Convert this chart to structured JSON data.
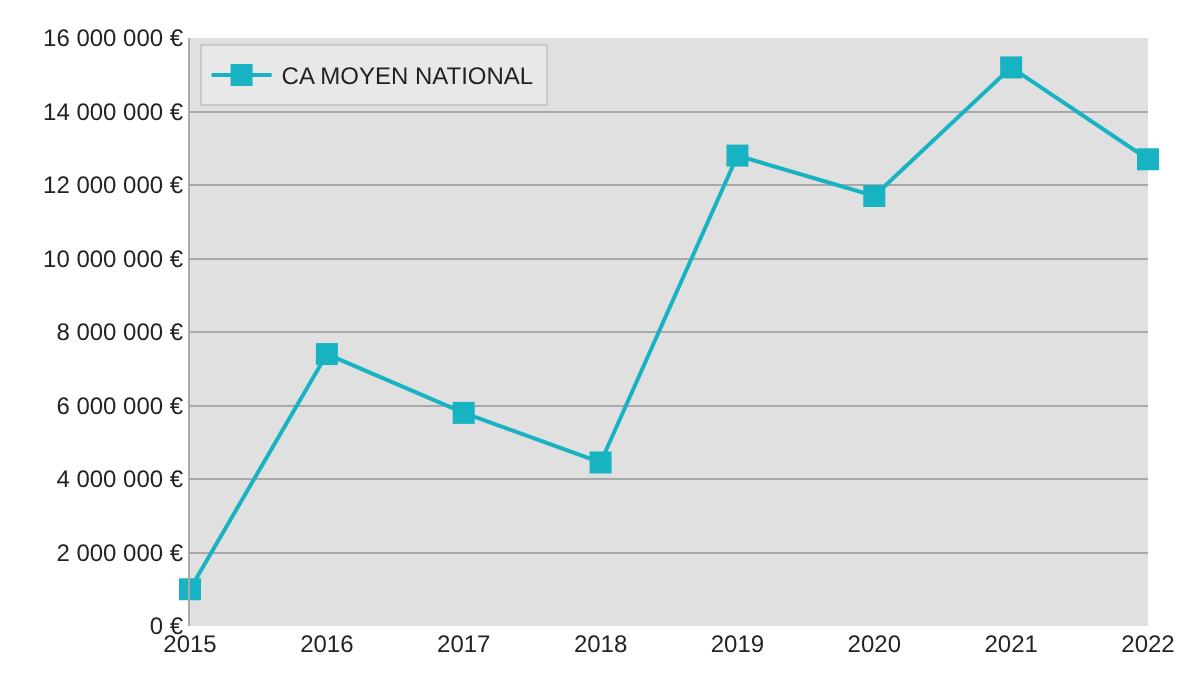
{
  "chart_data": {
    "type": "line",
    "categories": [
      "2015",
      "2016",
      "2017",
      "2018",
      "2019",
      "2020",
      "2021",
      "2022"
    ],
    "series": [
      {
        "name": "CA MOYEN NATIONAL",
        "color": "#17b3c3",
        "values": [
          1000000,
          7400000,
          5800000,
          4450000,
          12800000,
          11700000,
          15200000,
          12700000
        ]
      }
    ],
    "ylim": [
      0,
      16000000
    ],
    "yticks": [
      {
        "value": 0,
        "label": "0 €"
      },
      {
        "value": 2000000,
        "label": "2 000 000 €"
      },
      {
        "value": 4000000,
        "label": "4 000 000 €"
      },
      {
        "value": 6000000,
        "label": "6 000 000 €"
      },
      {
        "value": 8000000,
        "label": "8 000 000 €"
      },
      {
        "value": 10000000,
        "label": "10 000 000 €"
      },
      {
        "value": 12000000,
        "label": "12 000 000 €"
      },
      {
        "value": 14000000,
        "label": "14 000 000 €"
      },
      {
        "value": 16000000,
        "label": "16 000 000 €"
      }
    ],
    "grid": "y",
    "legend": "top left",
    "marker": "square",
    "line_style": "solid"
  }
}
